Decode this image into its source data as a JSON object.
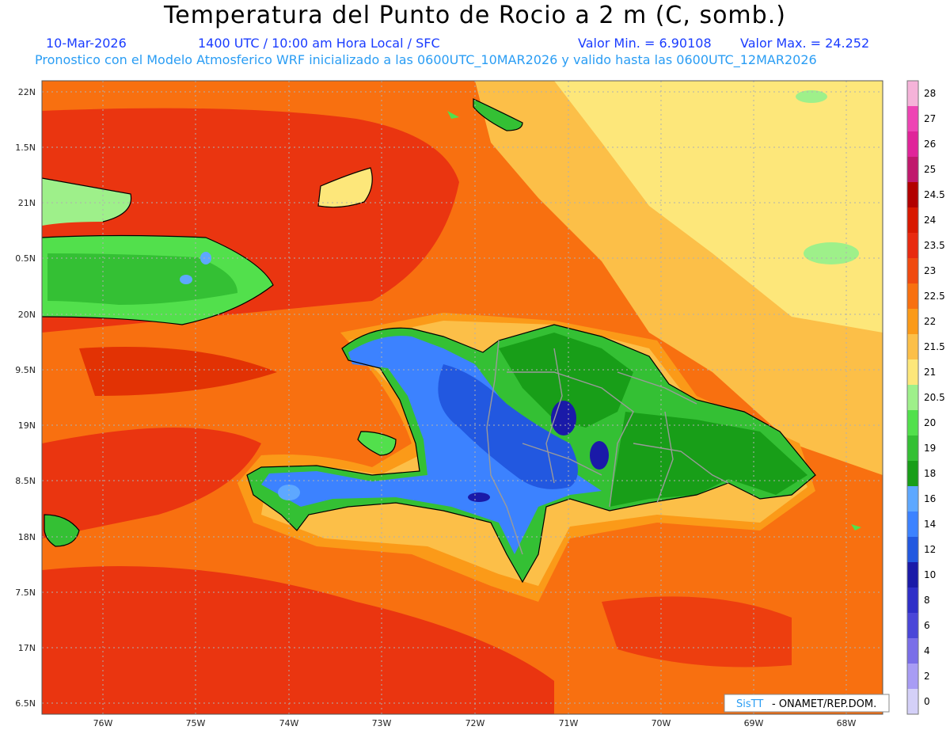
{
  "header": {
    "title": "Temperatura del Punto de Rocio a 2 m (C, somb.)",
    "date": "10-Mar-2026",
    "time": "1400 UTC / 10:00 am Hora Local / SFC",
    "min": "Valor Min. = 6.90108",
    "max": "Valor Max. = 24.252",
    "model": "Pronostico con el Modelo Atmosferico WRF inicializado a las 0600UTC_10MAR2026 y valido hasta las  0600UTC_12MAR2026"
  },
  "axes": {
    "lat_labels": [
      "22N",
      "1.5N",
      "21N",
      "0.5N",
      "20N",
      "9.5N",
      "19N",
      "8.5N",
      "18N",
      "7.5N",
      "17N",
      "6.5N"
    ],
    "lon_labels": [
      "76W",
      "75W",
      "74W",
      "73W",
      "72W",
      "71W",
      "70W",
      "69W",
      "68W"
    ]
  },
  "legend": {
    "labels": [
      "28",
      "27",
      "26",
      "25",
      "24.5",
      "24",
      "23.5",
      "23",
      "22.5",
      "22",
      "21.5",
      "21",
      "20.5",
      "20",
      "19",
      "18",
      "16",
      "14",
      "12",
      "10",
      "8",
      "6",
      "4",
      "2",
      "0"
    ],
    "colors": [
      "#f5b3d9",
      "#ee44b4",
      "#e0249a",
      "#c0186c",
      "#b20000",
      "#d81800",
      "#e82a10",
      "#f04a10",
      "#f87010",
      "#fb9a18",
      "#fcbf48",
      "#fde77a",
      "#9ef08a",
      "#52e04c",
      "#34c034",
      "#189e18",
      "#5ea8ff",
      "#3c82ff",
      "#2258e0",
      "#1a1aa8",
      "#2e2ec8",
      "#4a46d8",
      "#7a6ee8",
      "#a89cf4",
      "#d4d0f8"
    ]
  },
  "credit": {
    "brand": "SisTT",
    "org": "- ONAMET/REP.DOM."
  }
}
